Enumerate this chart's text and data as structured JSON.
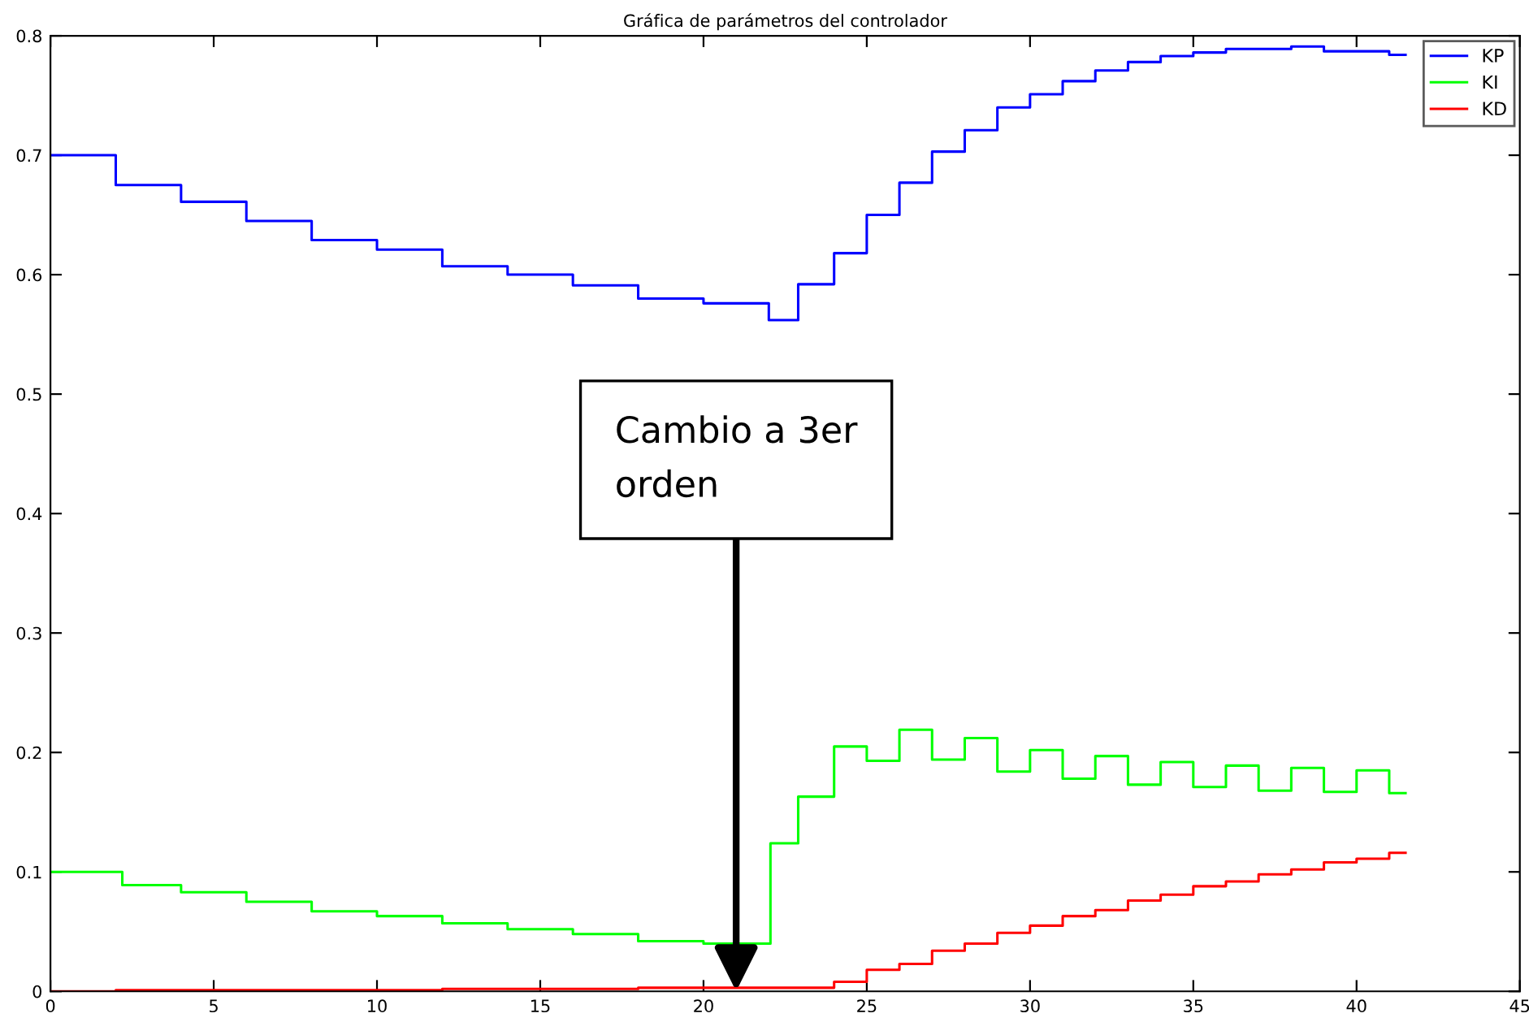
{
  "chart_data": {
    "type": "step",
    "title": "Gráfica de parámetros del controlador",
    "xlim": [
      0,
      45
    ],
    "xticks": [
      0,
      5,
      10,
      15,
      20,
      25,
      30,
      35,
      40,
      45
    ],
    "ylim": [
      0,
      0.8
    ],
    "yticks": [
      0,
      0.1,
      0.2,
      0.3,
      0.4,
      0.5,
      0.6,
      0.7,
      0.8
    ],
    "grid": false,
    "legend": "top right",
    "annotations": [
      {
        "text": "Cambio a 3er\norden",
        "x": 21,
        "y": 0
      }
    ],
    "series": [
      {
        "name": "KP",
        "color": "#0000ff",
        "x": [
          0,
          2,
          4,
          6,
          8,
          10,
          12,
          14,
          16,
          18,
          20,
          22,
          22.9,
          24,
          25,
          26,
          27,
          28,
          29,
          30,
          31,
          32,
          33,
          34,
          35,
          36,
          37,
          38,
          39,
          40,
          41,
          41.5
        ],
        "values": [
          0.7,
          0.675,
          0.661,
          0.645,
          0.629,
          0.621,
          0.607,
          0.6,
          0.591,
          0.58,
          0.576,
          0.562,
          0.592,
          0.618,
          0.65,
          0.677,
          0.703,
          0.721,
          0.74,
          0.751,
          0.762,
          0.771,
          0.778,
          0.783,
          0.786,
          0.789,
          0.789,
          0.791,
          0.787,
          0.787,
          0.784,
          0.784
        ]
      },
      {
        "name": "KI",
        "color": "#00ff00",
        "x": [
          0,
          2.2,
          4,
          6,
          8,
          10,
          12,
          14,
          16,
          18,
          20,
          22.05,
          22.9,
          24,
          25,
          26,
          27,
          28,
          29,
          30,
          31,
          32,
          33,
          34,
          35,
          36,
          37,
          38,
          39,
          40,
          41,
          41.5
        ],
        "values": [
          0.1,
          0.089,
          0.083,
          0.075,
          0.067,
          0.063,
          0.057,
          0.052,
          0.048,
          0.042,
          0.04,
          0.124,
          0.163,
          0.205,
          0.193,
          0.219,
          0.194,
          0.212,
          0.184,
          0.202,
          0.178,
          0.197,
          0.173,
          0.192,
          0.171,
          0.189,
          0.168,
          0.187,
          0.167,
          0.185,
          0.166,
          0.166
        ]
      },
      {
        "name": "KD",
        "color": "#ff0000",
        "x": [
          0,
          2,
          12,
          18,
          21,
          24,
          25,
          26,
          27,
          28,
          29,
          30,
          31,
          32,
          33,
          34,
          35,
          36,
          37,
          38,
          39,
          40,
          41,
          41.5
        ],
        "values": [
          0,
          0.001,
          0.002,
          0.003,
          0.003,
          0.008,
          0.018,
          0.023,
          0.034,
          0.04,
          0.049,
          0.055,
          0.063,
          0.068,
          0.076,
          0.081,
          0.088,
          0.092,
          0.098,
          0.102,
          0.108,
          0.111,
          0.116,
          0.116
        ]
      }
    ]
  }
}
